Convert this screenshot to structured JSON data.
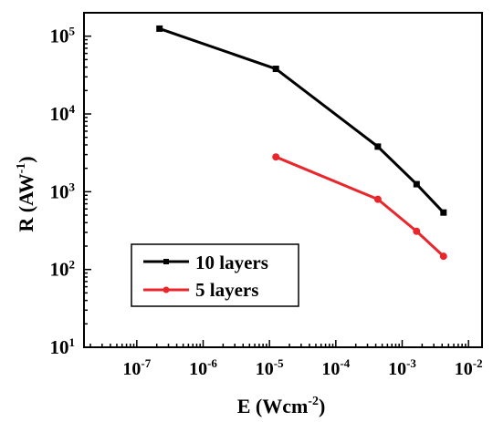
{
  "chart_data": {
    "type": "line",
    "xscale": "log",
    "yscale": "log",
    "xlim": [
      1.6e-08,
      0.016
    ],
    "ylim": [
      10,
      200000
    ],
    "x_ticks": [
      {
        "value": 1e-07,
        "base": "10",
        "exp": "-7"
      },
      {
        "value": 1e-06,
        "base": "10",
        "exp": "-6"
      },
      {
        "value": 1e-05,
        "base": "10",
        "exp": "-5"
      },
      {
        "value": 0.0001,
        "base": "10",
        "exp": "-4"
      },
      {
        "value": 0.001,
        "base": "10",
        "exp": "-3"
      },
      {
        "value": 0.01,
        "base": "10",
        "exp": "-2"
      }
    ],
    "y_ticks": [
      {
        "value": 10,
        "base": "10",
        "exp": "1"
      },
      {
        "value": 100,
        "base": "10",
        "exp": "2"
      },
      {
        "value": 1000,
        "base": "10",
        "exp": "3"
      },
      {
        "value": 10000,
        "base": "10",
        "exp": "4"
      },
      {
        "value": 100000,
        "base": "10",
        "exp": "5"
      }
    ],
    "xlabel": {
      "main": "E (Wcm",
      "sup": "-2",
      "tail": ")"
    },
    "ylabel": {
      "main": "R (AW",
      "sup": "-1",
      "tail": ")"
    },
    "legend_position": "bottom-left",
    "grid": false,
    "series": [
      {
        "name": "10 layers",
        "color": "#000000",
        "marker": "square",
        "x": [
          2.2e-07,
          1.25e-05,
          0.00043,
          0.00165,
          0.0042
        ],
        "y": [
          125000,
          38000,
          3800,
          1250,
          540
        ]
      },
      {
        "name": "5 layers",
        "color": "#e8262b",
        "marker": "circle",
        "x": [
          1.25e-05,
          0.00043,
          0.00165,
          0.0042
        ],
        "y": [
          2800,
          800,
          310,
          148
        ]
      }
    ]
  }
}
